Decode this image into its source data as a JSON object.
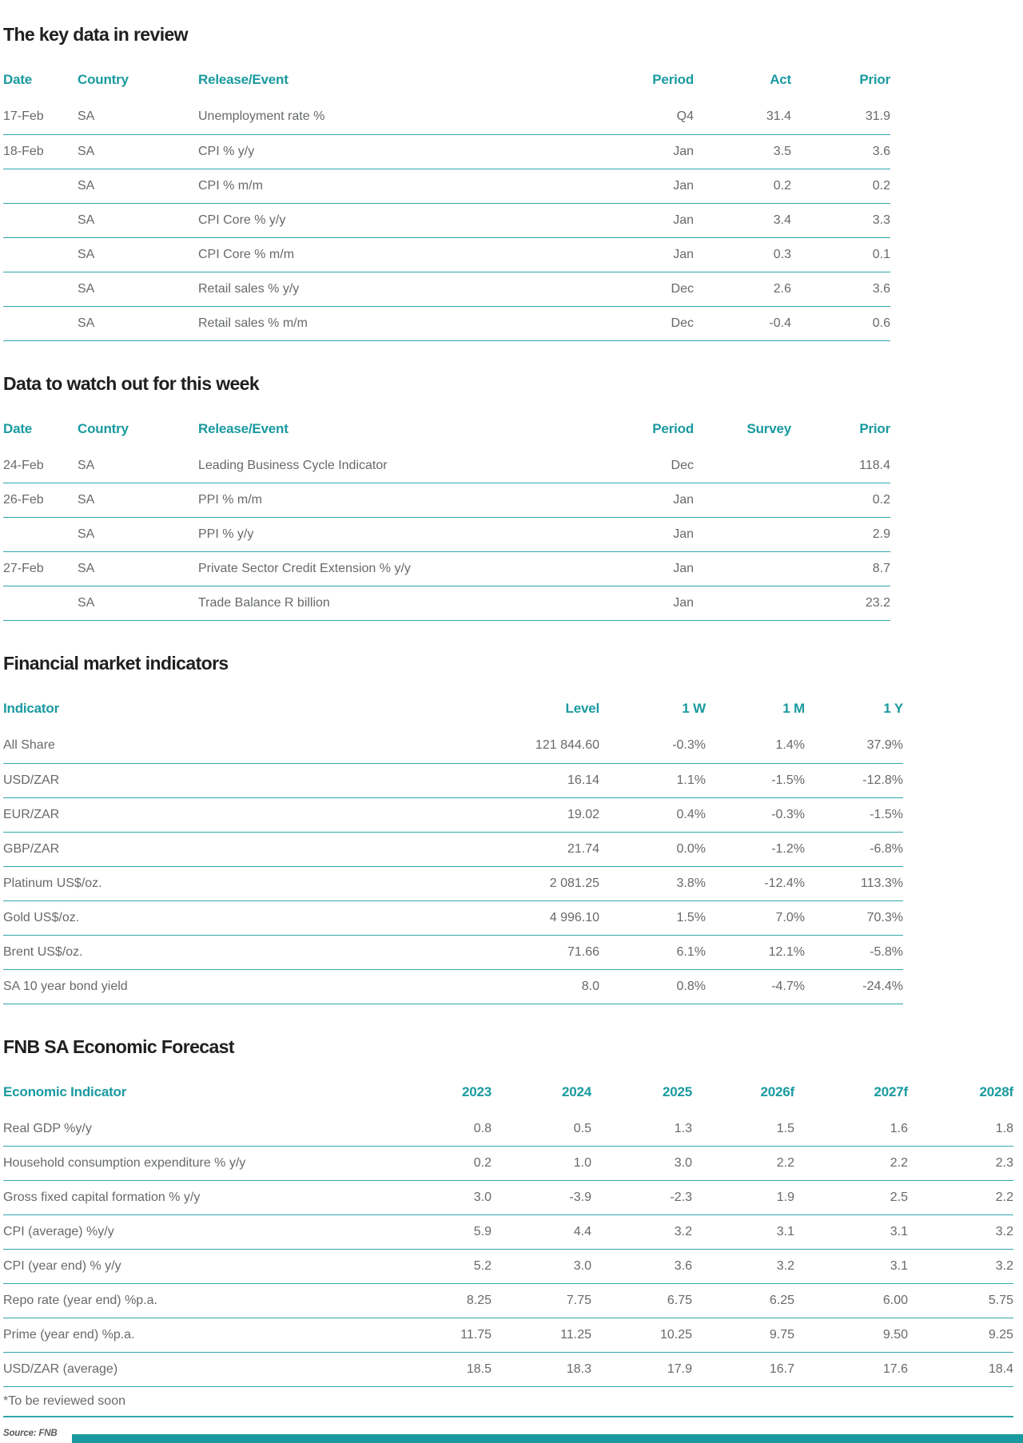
{
  "theme": {
    "accent_teal": "#1A9AA0",
    "row_line_teal": "#32A7AC",
    "body_text_gray": "#66696B",
    "title_black": "#1F1F1F"
  },
  "page": {
    "source_note": "Source: FNB"
  },
  "tables": {
    "key_data": {
      "title": "The key data in review",
      "columns": [
        {
          "label": "Date",
          "align": "left"
        },
        {
          "label": "Country",
          "align": "left"
        },
        {
          "label": "Release/Event",
          "align": "left"
        },
        {
          "label": "Period",
          "align": "right"
        },
        {
          "label": "Act",
          "align": "right"
        },
        {
          "label": "Prior",
          "align": "right"
        }
      ],
      "rows": [
        [
          "17-Feb",
          "SA",
          "Unemployment rate %",
          "Q4",
          "31.4",
          "31.9"
        ],
        [
          "18-Feb",
          "SA",
          "CPI % y/y",
          "Jan",
          "3.5",
          "3.6"
        ],
        [
          "",
          "SA",
          "CPI % m/m",
          "Jan",
          "0.2",
          "0.2"
        ],
        [
          "",
          "SA",
          "CPI Core % y/y",
          "Jan",
          "3.4",
          "3.3"
        ],
        [
          "",
          "SA",
          "CPI Core % m/m",
          "Jan",
          "0.3",
          "0.1"
        ],
        [
          "",
          "SA",
          "Retail sales % y/y",
          "Dec",
          "2.6",
          "3.6"
        ],
        [
          "",
          "SA",
          "Retail sales % m/m",
          "Dec",
          "-0.4",
          "0.6"
        ]
      ]
    },
    "watch_week": {
      "title": "Data to watch out for this week",
      "columns": [
        {
          "label": "Date",
          "align": "left"
        },
        {
          "label": "Country",
          "align": "left"
        },
        {
          "label": "Release/Event",
          "align": "left"
        },
        {
          "label": "Period",
          "align": "right"
        },
        {
          "label": "Survey",
          "align": "right"
        },
        {
          "label": "Prior",
          "align": "right"
        }
      ],
      "rows": [
        [
          "24-Feb",
          "SA",
          "Leading Business Cycle Indicator",
          "Dec",
          "",
          "118.4"
        ],
        [
          "26-Feb",
          "SA",
          "PPI % m/m",
          "Jan",
          "",
          "0.2"
        ],
        [
          "",
          "SA",
          "PPI % y/y",
          "Jan",
          "",
          "2.9"
        ],
        [
          "27-Feb",
          "SA",
          "Private Sector Credit Extension % y/y",
          "Jan",
          "",
          "8.7"
        ],
        [
          "",
          "SA",
          "Trade Balance R billion",
          "Jan",
          "",
          "23.2"
        ]
      ]
    },
    "market": {
      "title": "Financial market indicators",
      "columns": [
        {
          "label": "Indicator",
          "align": "left"
        },
        {
          "label": "Level",
          "align": "right"
        },
        {
          "label": "1 W",
          "align": "right"
        },
        {
          "label": "1 M",
          "align": "right"
        },
        {
          "label": "1 Y",
          "align": "right"
        }
      ],
      "rows": [
        [
          "All Share",
          "121 844.60",
          "-0.3%",
          "1.4%",
          "37.9%"
        ],
        [
          "USD/ZAR",
          "16.14",
          "1.1%",
          "-1.5%",
          "-12.8%"
        ],
        [
          "EUR/ZAR",
          "19.02",
          "0.4%",
          "-0.3%",
          "-1.5%"
        ],
        [
          "GBP/ZAR",
          "21.74",
          "0.0%",
          "-1.2%",
          "-6.8%"
        ],
        [
          "Platinum US$/oz.",
          "2 081.25",
          "3.8%",
          "-12.4%",
          "113.3%"
        ],
        [
          "Gold US$/oz.",
          "4 996.10",
          "1.5%",
          "7.0%",
          "70.3%"
        ],
        [
          "Brent US$/oz.",
          "71.66",
          "6.1%",
          "12.1%",
          "-5.8%"
        ],
        [
          "SA 10 year bond yield",
          "8.0",
          "0.8%",
          "-4.7%",
          "-24.4%"
        ]
      ]
    },
    "forecast": {
      "title": "FNB SA Economic Forecast",
      "columns": [
        {
          "label": "Economic Indicator",
          "align": "left"
        },
        {
          "label": "2023",
          "align": "right"
        },
        {
          "label": "2024",
          "align": "right"
        },
        {
          "label": "2025",
          "align": "right"
        },
        {
          "label": "2026f",
          "align": "right"
        },
        {
          "label": "2027f",
          "align": "right"
        },
        {
          "label": "2028f",
          "align": "right"
        }
      ],
      "rows": [
        [
          "Real GDP %y/y",
          "0.8",
          "0.5",
          "1.3",
          "1.5",
          "1.6",
          "1.8"
        ],
        [
          "Household consumption expenditure % y/y",
          "0.2",
          "1.0",
          "3.0",
          "2.2",
          "2.2",
          "2.3"
        ],
        [
          "Gross fixed capital formation % y/y",
          "3.0",
          "-3.9",
          "-2.3",
          "1.9",
          "2.5",
          "2.2"
        ],
        [
          "CPI (average) %y/y",
          "5.9",
          "4.4",
          "3.2",
          "3.1",
          "3.1",
          "3.2"
        ],
        [
          "CPI (year end) % y/y",
          "5.2",
          "3.0",
          "3.6",
          "3.2",
          "3.1",
          "3.2"
        ],
        [
          "Repo rate (year end) %p.a.",
          "8.25",
          "7.75",
          "6.75",
          "6.25",
          "6.00",
          "5.75"
        ],
        [
          "Prime (year end) %p.a.",
          "11.75",
          "11.25",
          "10.25",
          "9.75",
          "9.50",
          "9.25"
        ],
        [
          "USD/ZAR (average)",
          "18.5",
          "18.3",
          "17.9",
          "16.7",
          "17.6",
          "18.4"
        ]
      ],
      "footnote": "*To be reviewed soon"
    }
  }
}
